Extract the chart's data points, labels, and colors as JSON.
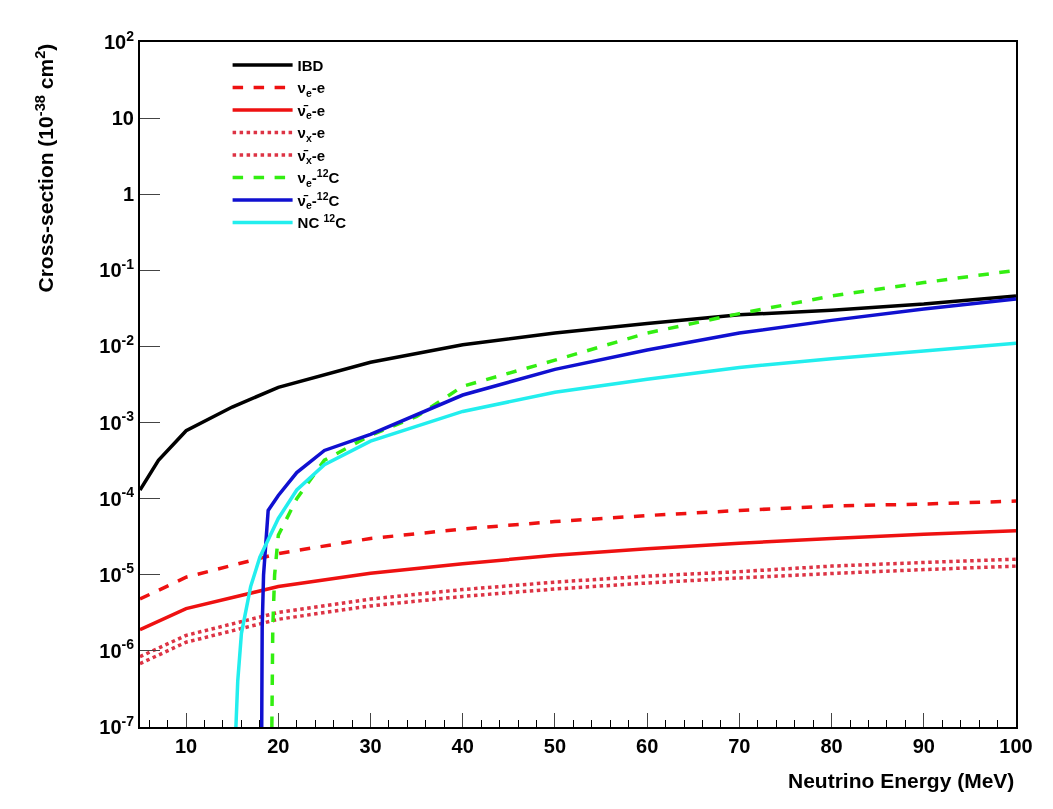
{
  "chart_data": {
    "type": "line",
    "xlabel": "Neutrino Energy (MeV)",
    "ylabel": "Cross-section (10$^{-38}$ cm$^{2}$)",
    "log": "y",
    "xlim": [
      5,
      100
    ],
    "xticks": [
      10,
      20,
      30,
      40,
      50,
      60,
      70,
      80,
      90,
      100
    ],
    "ylim": [
      1e-07,
      100
    ],
    "yticks": [
      {
        "value": 1e-07,
        "label": "10$^{-7}$"
      },
      {
        "value": 1e-06,
        "label": "10$^{-6}$"
      },
      {
        "value": 1e-05,
        "label": "10$^{-5}$"
      },
      {
        "value": 0.0001,
        "label": "10$^{-4}$"
      },
      {
        "value": 0.001,
        "label": "10$^{-3}$"
      },
      {
        "value": 0.01,
        "label": "10$^{-2}$"
      },
      {
        "value": 0.1,
        "label": "10$^{-1}$"
      },
      1,
      10,
      {
        "value": 100,
        "label": "10$^{2}$"
      }
    ],
    "grid": false,
    "legend": "top left",
    "marker": "none",
    "series": [
      {
        "name": "IBD",
        "color": "#000000",
        "line_style": "solid",
        "x": [
          5,
          7,
          10,
          15,
          20,
          30,
          40,
          50,
          60,
          70,
          80,
          90,
          100
        ],
        "values": [
          0.00013,
          0.00032,
          0.00078,
          0.0016,
          0.0029,
          0.0062,
          0.0105,
          0.015,
          0.02,
          0.026,
          0.03,
          0.036,
          0.046
        ]
      },
      {
        "name": "ν$_{e}$-e",
        "color": "#ee1111",
        "line_style": "dashed",
        "x": [
          5,
          10,
          20,
          30,
          40,
          50,
          60,
          70,
          80,
          90,
          100
        ],
        "values": [
          4.8e-06,
          9.3e-06,
          1.9e-05,
          3e-05,
          4e-05,
          5e-05,
          6e-05,
          7e-05,
          8e-05,
          8.5e-05,
          9.3e-05
        ]
      },
      {
        "name": "ν̄$_{e}$-e",
        "color": "#ee1111",
        "line_style": "solid",
        "x": [
          5,
          10,
          20,
          30,
          40,
          50,
          60,
          70,
          80,
          90,
          100
        ],
        "values": [
          1.9e-06,
          3.6e-06,
          7e-06,
          1.05e-05,
          1.4e-05,
          1.8e-05,
          2.2e-05,
          2.6e-05,
          3e-05,
          3.4e-05,
          3.8e-05
        ]
      },
      {
        "name": "ν$_{x}$-e",
        "color": "#dd3344",
        "line_style": "dotted",
        "x": [
          5,
          10,
          20,
          30,
          40,
          50,
          60,
          70,
          80,
          90,
          100
        ],
        "values": [
          8.4e-07,
          1.6e-06,
          3.2e-06,
          4.8e-06,
          6.4e-06,
          8e-06,
          9.6e-06,
          1.1e-05,
          1.3e-05,
          1.45e-05,
          1.6e-05
        ]
      },
      {
        "name": "ν̄$_{x}$-e",
        "color": "#dd3344",
        "line_style": "dotted",
        "x": [
          5,
          10,
          20,
          30,
          40,
          50,
          60,
          70,
          80,
          90,
          100
        ],
        "values": [
          6.8e-07,
          1.3e-06,
          2.6e-06,
          3.9e-06,
          5.2e-06,
          6.5e-06,
          7.8e-06,
          9.1e-06,
          1.04e-05,
          1.17e-05,
          1.3e-05
        ]
      },
      {
        "name": "ν$_{e}$-$^{12}$C",
        "color": "#33ee11",
        "line_style": "dashed",
        "x": [
          19.3,
          19.4,
          19.6,
          20,
          22,
          25,
          30,
          35,
          40,
          50,
          60,
          70,
          80,
          90,
          100
        ],
        "values": [
          1e-07,
          2e-06,
          1e-05,
          3.3e-05,
          0.0001,
          0.00032,
          0.00068,
          0.0012,
          0.003,
          0.0066,
          0.015,
          0.027,
          0.046,
          0.069,
          0.1
        ]
      },
      {
        "name": "ν̄$_{e}$-$^{12}$C",
        "color": "#1010d0",
        "line_style": "solid",
        "x": [
          18.2,
          18.25,
          18.4,
          18.9,
          20,
          22,
          25,
          30,
          40,
          50,
          60,
          70,
          80,
          90,
          100
        ],
        "values": [
          1e-07,
          2e-06,
          1e-05,
          7e-05,
          0.00011,
          0.00022,
          0.00043,
          0.0007,
          0.0023,
          0.005,
          0.009,
          0.015,
          0.022,
          0.031,
          0.042
        ]
      },
      {
        "name": "NC $^{12}$C",
        "color": "#22eeee",
        "line_style": "solid",
        "x": [
          15.4,
          15.6,
          16,
          17,
          18,
          20,
          22,
          25,
          30,
          40,
          50,
          60,
          70,
          80,
          90,
          100
        ],
        "values": [
          1e-07,
          4e-07,
          1.7e-06,
          7e-06,
          1.7e-05,
          5.5e-05,
          0.00013,
          0.00028,
          0.00057,
          0.0014,
          0.0025,
          0.0037,
          0.0053,
          0.0069,
          0.0087,
          0.011
        ]
      }
    ]
  }
}
